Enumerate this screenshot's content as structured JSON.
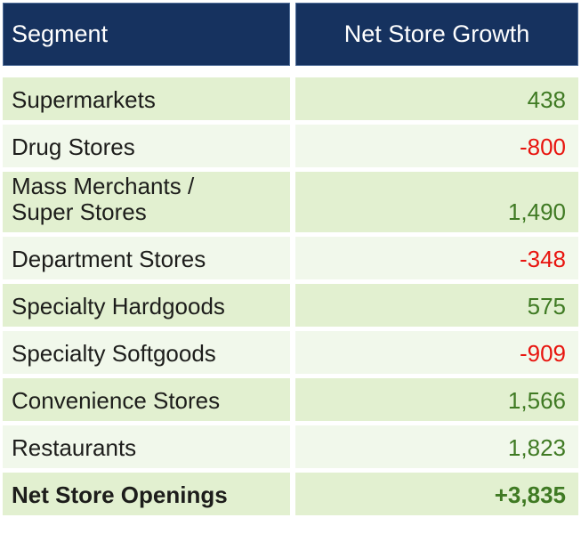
{
  "header": {
    "segment_label": "Segment",
    "value_label": "Net Store Growth"
  },
  "rows": [
    {
      "segment": "Supermarkets",
      "value": "438",
      "sentiment": "positive",
      "emphasis": false
    },
    {
      "segment": "Drug Stores",
      "value": "-800",
      "sentiment": "negative",
      "emphasis": false
    },
    {
      "segment": "Mass Merchants /\nSuper Stores",
      "value": "1,490",
      "sentiment": "positive",
      "emphasis": false
    },
    {
      "segment": "Department Stores",
      "value": "-348",
      "sentiment": "negative",
      "emphasis": false
    },
    {
      "segment": "Specialty Hardgoods",
      "value": "575",
      "sentiment": "positive",
      "emphasis": false
    },
    {
      "segment": "Specialty Softgoods",
      "value": "-909",
      "sentiment": "negative",
      "emphasis": false
    },
    {
      "segment": "Convenience Stores",
      "value": "1,566",
      "sentiment": "positive",
      "emphasis": false
    },
    {
      "segment": "Restaurants",
      "value": "1,823",
      "sentiment": "positive",
      "emphasis": false
    },
    {
      "segment": "Net Store Openings",
      "value": "+3,835",
      "sentiment": "positive",
      "emphasis": true
    }
  ],
  "colors": {
    "header_bg": "#16325f",
    "header_text": "#ffffff",
    "row_green": "#e2f0d0",
    "row_light": "#f1f8eb",
    "positive_text": "#3f7a23",
    "negative_text": "#e8140e",
    "label_text": "#1d1d1b"
  },
  "chart_data": {
    "type": "table",
    "columns": [
      "Segment",
      "Net Store Growth"
    ],
    "rows": [
      [
        "Supermarkets",
        438
      ],
      [
        "Drug Stores",
        -800
      ],
      [
        "Mass Merchants / Super Stores",
        1490
      ],
      [
        "Department Stores",
        -348
      ],
      [
        "Specialty Hardgoods",
        575
      ],
      [
        "Specialty Softgoods",
        -909
      ],
      [
        "Convenience Stores",
        1566
      ],
      [
        "Restaurants",
        1823
      ]
    ],
    "total_row": [
      "Net Store Openings",
      3835
    ],
    "notes": "Positive values shown in dark green, negative values in red; total row bold with + prefix."
  }
}
